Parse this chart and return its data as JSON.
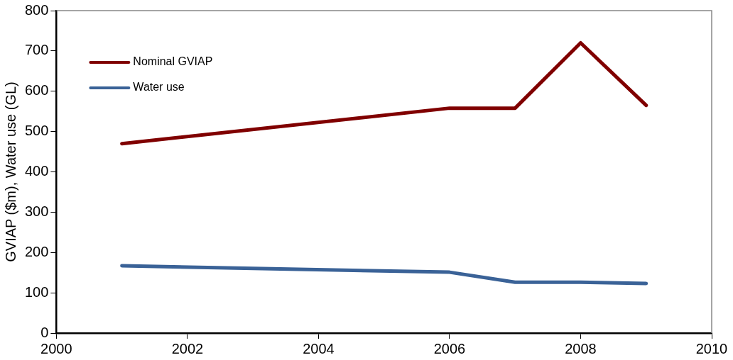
{
  "chart_data": {
    "type": "line",
    "ylabel": "GVIAP ($m), Water use (GL)",
    "xlim": [
      2000,
      2010
    ],
    "xticks": [
      2000,
      2002,
      2004,
      2006,
      2008,
      2010
    ],
    "ylim": [
      0,
      800
    ],
    "yticks": [
      0,
      100,
      200,
      300,
      400,
      500,
      600,
      700,
      800
    ],
    "grid": false,
    "legend": "top left",
    "marker": "none",
    "line_style": "solid",
    "series": [
      {
        "name": "Nominal GVIAP",
        "color": "#800000",
        "x": [
          2001,
          2006,
          2007,
          2008,
          2009
        ],
        "values": [
          470,
          558,
          558,
          720,
          565
        ]
      },
      {
        "name": "Water use",
        "color": "#3a6297",
        "x": [
          2001,
          2006,
          2007,
          2008,
          2009
        ],
        "values": [
          167,
          151,
          126,
          126,
          123
        ]
      }
    ]
  }
}
